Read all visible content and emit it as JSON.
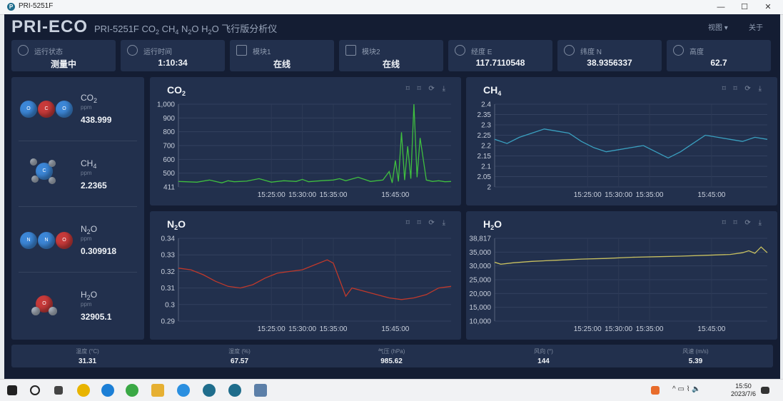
{
  "window": {
    "title": "PRI-5251F",
    "min": "—",
    "max": "☐",
    "close": "✕"
  },
  "header": {
    "brand": "PRI-ECO",
    "subtitle_prefix": "PRI-5251F CO",
    "subtitle_parts": [
      "2",
      " CH",
      "4",
      " N",
      "2",
      "O H",
      "2",
      "O 飞行版分析仪"
    ],
    "menu_view": "视图 ▾",
    "menu_about": "关于"
  },
  "stats": [
    {
      "label": "运行状态",
      "value": "测量中",
      "icon": "gear-icon"
    },
    {
      "label": "运行时间",
      "value": "1:10:34",
      "icon": "clock-icon"
    },
    {
      "label": "模块1",
      "value": "在线",
      "icon": "chart-icon"
    },
    {
      "label": "模块2",
      "value": "在线",
      "icon": "chart-icon"
    },
    {
      "label": "经度 E",
      "value": "117.7110548",
      "icon": "location-icon"
    },
    {
      "label": "纬度 N",
      "value": "38.9356337",
      "icon": "location-icon"
    },
    {
      "label": "高度",
      "value": "62.7",
      "icon": "location-icon"
    }
  ],
  "gases": [
    {
      "name": "CO",
      "sub": "2",
      "unit": "ppm",
      "value": "438.999",
      "atoms": [
        "O",
        "C",
        "O"
      ]
    },
    {
      "name": "CH",
      "sub": "4",
      "unit": "ppm",
      "value": "2.2365",
      "atoms": [
        "C"
      ]
    },
    {
      "name": "N",
      "sub": "2",
      "name2": "O",
      "unit": "ppm",
      "value": "0.309918",
      "atoms": [
        "N",
        "N",
        "O"
      ]
    },
    {
      "name": "H",
      "sub": "2",
      "name2": "O",
      "unit": "ppm",
      "value": "32905.1",
      "atoms": [
        "O"
      ]
    }
  ],
  "chart_tools": "⌑ ⌑ ⟳ ⤓",
  "chart_data": [
    {
      "type": "line",
      "title": "CO",
      "title_sub": "2",
      "color": "#3fbf3f",
      "ylim": [
        411,
        1000
      ],
      "yticks": [
        "1,000",
        "900",
        "800",
        "700",
        "600",
        "500",
        "411"
      ],
      "xlim": [
        0,
        44
      ],
      "xticks": [
        {
          "t": 15,
          "label": "15:25:00"
        },
        {
          "t": 20,
          "label": "15:30:00"
        },
        {
          "t": 25,
          "label": "15:35:00"
        },
        {
          "t": 35,
          "label": "15:45:00"
        }
      ],
      "x": [
        0,
        3,
        5,
        7,
        8,
        9,
        11,
        13,
        15,
        17,
        19,
        20,
        21,
        23,
        25,
        26,
        27,
        29,
        30,
        31,
        33,
        34,
        34.5,
        35,
        35.5,
        36,
        36.5,
        37,
        37.5,
        38,
        38.5,
        39,
        40,
        41,
        42,
        43,
        44
      ],
      "y": [
        450,
        445,
        460,
        440,
        455,
        448,
        452,
        470,
        445,
        455,
        450,
        465,
        448,
        455,
        460,
        470,
        455,
        480,
        465,
        450,
        460,
        520,
        440,
        600,
        450,
        800,
        460,
        700,
        470,
        1000,
        480,
        760,
        460,
        450,
        455,
        448,
        450
      ]
    },
    {
      "type": "line",
      "title": "CH",
      "title_sub": "4",
      "color": "#3aa0c0",
      "ylim": [
        2,
        2.4
      ],
      "yticks": [
        "2.4",
        "2.35",
        "2.3",
        "2.25",
        "2.2",
        "2.15",
        "2.1",
        "2.05",
        "2"
      ],
      "xlim": [
        0,
        44
      ],
      "xticks": [
        {
          "t": 15,
          "label": "15:25:00"
        },
        {
          "t": 20,
          "label": "15:30:00"
        },
        {
          "t": 25,
          "label": "15:35:00"
        },
        {
          "t": 35,
          "label": "15:45:00"
        }
      ],
      "x": [
        0,
        2,
        4,
        6,
        8,
        10,
        12,
        14,
        16,
        18,
        20,
        22,
        24,
        26,
        28,
        30,
        32,
        34,
        36,
        38,
        40,
        42,
        44
      ],
      "y": [
        2.23,
        2.21,
        2.24,
        2.26,
        2.28,
        2.27,
        2.26,
        2.22,
        2.19,
        2.17,
        2.18,
        2.19,
        2.2,
        2.17,
        2.14,
        2.17,
        2.21,
        2.25,
        2.24,
        2.23,
        2.22,
        2.24,
        2.23
      ]
    },
    {
      "type": "line",
      "title": "N",
      "title_sub": "2",
      "title_tail": "O",
      "color": "#c0392b",
      "ylim": [
        0.29,
        0.34
      ],
      "yticks": [
        "0.34",
        "0.33",
        "0.32",
        "0.31",
        "0.3",
        "0.29"
      ],
      "xlim": [
        0,
        44
      ],
      "xticks": [
        {
          "t": 15,
          "label": "15:25:00"
        },
        {
          "t": 20,
          "label": "15:30:00"
        },
        {
          "t": 25,
          "label": "15:35:00"
        },
        {
          "t": 35,
          "label": "15:45:00"
        }
      ],
      "x": [
        0,
        2,
        4,
        6,
        8,
        10,
        12,
        14,
        16,
        18,
        20,
        22,
        24,
        25,
        26,
        27,
        28,
        30,
        32,
        34,
        36,
        38,
        40,
        42,
        44
      ],
      "y": [
        0.322,
        0.321,
        0.318,
        0.314,
        0.311,
        0.31,
        0.312,
        0.316,
        0.319,
        0.32,
        0.321,
        0.324,
        0.327,
        0.325,
        0.315,
        0.305,
        0.31,
        0.308,
        0.306,
        0.304,
        0.303,
        0.304,
        0.306,
        0.31,
        0.311
      ]
    },
    {
      "type": "line",
      "title": "H",
      "title_sub": "2",
      "title_tail": "O",
      "color": "#c8c060",
      "ylim": [
        10000,
        38817
      ],
      "yticks": [
        "38,817",
        "35,000",
        "30,000",
        "25,000",
        "20,000",
        "15,000",
        "10,000"
      ],
      "xlim": [
        0,
        44
      ],
      "xticks": [
        {
          "t": 15,
          "label": "15:25:00"
        },
        {
          "t": 20,
          "label": "15:30:00"
        },
        {
          "t": 25,
          "label": "15:35:00"
        },
        {
          "t": 35,
          "label": "15:45:00"
        }
      ],
      "x": [
        0,
        1,
        3,
        6,
        10,
        14,
        18,
        22,
        26,
        30,
        34,
        38,
        40,
        41,
        42,
        43,
        44
      ],
      "y": [
        30500,
        29800,
        30300,
        30800,
        31200,
        31600,
        31800,
        32200,
        32400,
        32600,
        32900,
        33200,
        33800,
        34500,
        33600,
        35800,
        33800
      ]
    }
  ],
  "weather": [
    {
      "label": "温度 (°C)",
      "value": "31.31"
    },
    {
      "label": "湿度 (%)",
      "value": "67.57"
    },
    {
      "label": "气压 (hPa)",
      "value": "985.62"
    },
    {
      "label": "风向 (°)",
      "value": "144"
    },
    {
      "label": "风速 (m/s)",
      "value": "5.39"
    }
  ],
  "taskbar": {
    "time": "15:50",
    "date": "2023/7/6",
    "tray": "^ ▭ ⌇ 🔈"
  }
}
